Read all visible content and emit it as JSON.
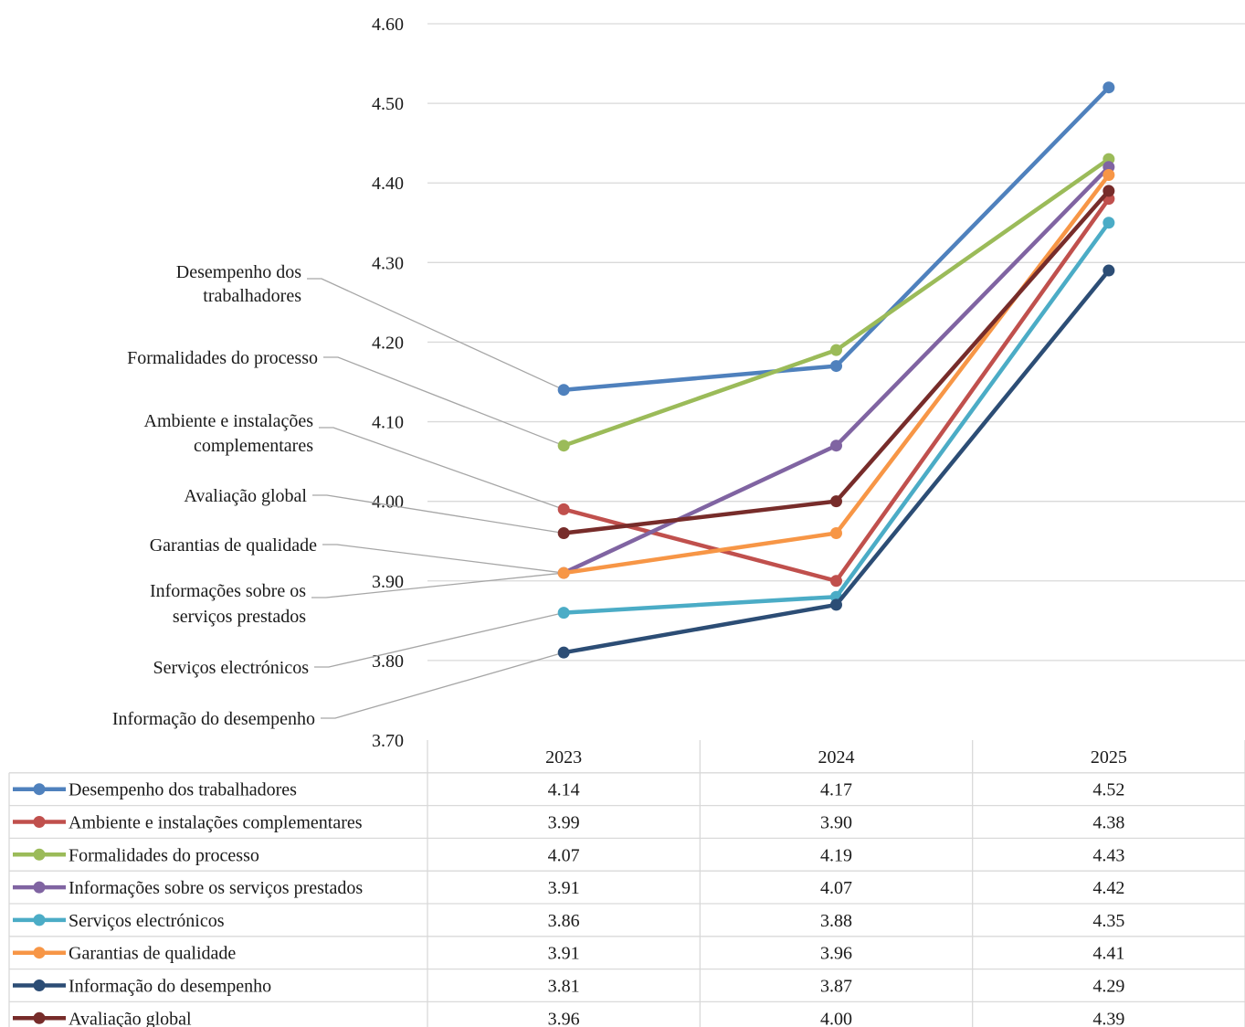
{
  "chart_data": {
    "type": "line",
    "title": "",
    "xlabel": "",
    "ylabel": "",
    "categories": [
      "2023",
      "2024",
      "2025"
    ],
    "ylim": [
      3.7,
      4.6
    ],
    "yticks": [
      "3.70",
      "3.80",
      "3.90",
      "4.00",
      "4.10",
      "4.20",
      "4.30",
      "4.40",
      "4.50",
      "4.60"
    ],
    "grid": true,
    "legend": "data-table-below",
    "series": [
      {
        "name": "Desempenho dos trabalhadores",
        "color": "#4F81BD",
        "values": [
          4.14,
          4.17,
          4.52
        ],
        "labels": [
          "4.14",
          "4.17",
          "4.52"
        ]
      },
      {
        "name": "Ambiente e instalações complementares",
        "color": "#C0504D",
        "values": [
          3.99,
          3.9,
          4.38
        ],
        "labels": [
          "3.99",
          "3.90",
          "4.38"
        ]
      },
      {
        "name": "Formalidades do processo",
        "color": "#9BBB59",
        "values": [
          4.07,
          4.19,
          4.43
        ],
        "labels": [
          "4.07",
          "4.19",
          "4.43"
        ]
      },
      {
        "name": "Informações sobre os serviços prestados",
        "color": "#8064A2",
        "values": [
          3.91,
          4.07,
          4.42
        ],
        "labels": [
          "3.91",
          "4.07",
          "4.42"
        ]
      },
      {
        "name": "Serviços electrónicos",
        "color": "#4BACC6",
        "values": [
          3.86,
          3.88,
          4.35
        ],
        "labels": [
          "3.86",
          "3.88",
          "4.35"
        ]
      },
      {
        "name": "Garantias de qualidade",
        "color": "#F79646",
        "values": [
          3.91,
          3.96,
          4.41
        ],
        "labels": [
          "3.91",
          "3.96",
          "4.41"
        ]
      },
      {
        "name": "Informação do desempenho",
        "color": "#2C4D75",
        "values": [
          3.81,
          3.87,
          4.29
        ],
        "labels": [
          "3.81",
          "3.87",
          "4.29"
        ]
      },
      {
        "name": "Avaliação global",
        "color": "#772C2A",
        "values": [
          3.96,
          4.0,
          4.39
        ],
        "labels": [
          "3.96",
          "4.00",
          "4.39"
        ]
      }
    ],
    "annotations": [
      {
        "series": 0,
        "lines": [
          "Desempenho dos",
          "trabalhadores"
        ]
      },
      {
        "series": 2,
        "lines": [
          "Formalidades do processo"
        ]
      },
      {
        "series": 1,
        "lines": [
          "Ambiente e instalações",
          "complementares"
        ]
      },
      {
        "series": 7,
        "lines": [
          "Avaliação global"
        ]
      },
      {
        "series": 5,
        "lines": [
          "Garantias de qualidade"
        ]
      },
      {
        "series": 3,
        "lines": [
          "Informações sobre os",
          "serviços prestados"
        ]
      },
      {
        "series": 4,
        "lines": [
          "Serviços electrónicos"
        ]
      },
      {
        "series": 6,
        "lines": [
          "Informação do desempenho"
        ]
      }
    ]
  }
}
